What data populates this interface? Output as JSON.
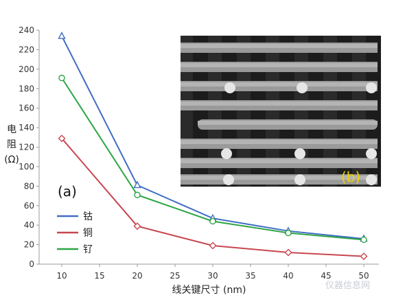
{
  "chart_data": {
    "type": "line",
    "title": "",
    "xlabel": "线关键尺寸 (nm)",
    "ylabel": "电阻 (Ω)",
    "x": [
      10,
      20,
      30,
      40,
      50
    ],
    "xlim": [
      7,
      52
    ],
    "ylim": [
      0,
      240
    ],
    "xticks": [
      10,
      15,
      20,
      25,
      30,
      35,
      40,
      45,
      50
    ],
    "yticks": [
      0,
      20,
      40,
      60,
      80,
      100,
      120,
      140,
      160,
      180,
      200,
      220,
      240
    ],
    "grid": false,
    "legend_position": "lower-left",
    "series": [
      {
        "name": "钴",
        "values": [
          234,
          81,
          47,
          34,
          26
        ],
        "color": "#3f6cc4",
        "marker": "triangle"
      },
      {
        "name": "铜",
        "values": [
          129,
          39,
          19,
          12,
          8
        ],
        "color": "#c8464f",
        "marker": "diamond"
      },
      {
        "name": "钌",
        "values": [
          191,
          71,
          44,
          32,
          25
        ],
        "color": "#2ca544",
        "marker": "circle"
      }
    ],
    "annotations": {
      "panel_a": "(a)",
      "panel_b": "(b)"
    }
  },
  "watermark": "仪器信息网"
}
